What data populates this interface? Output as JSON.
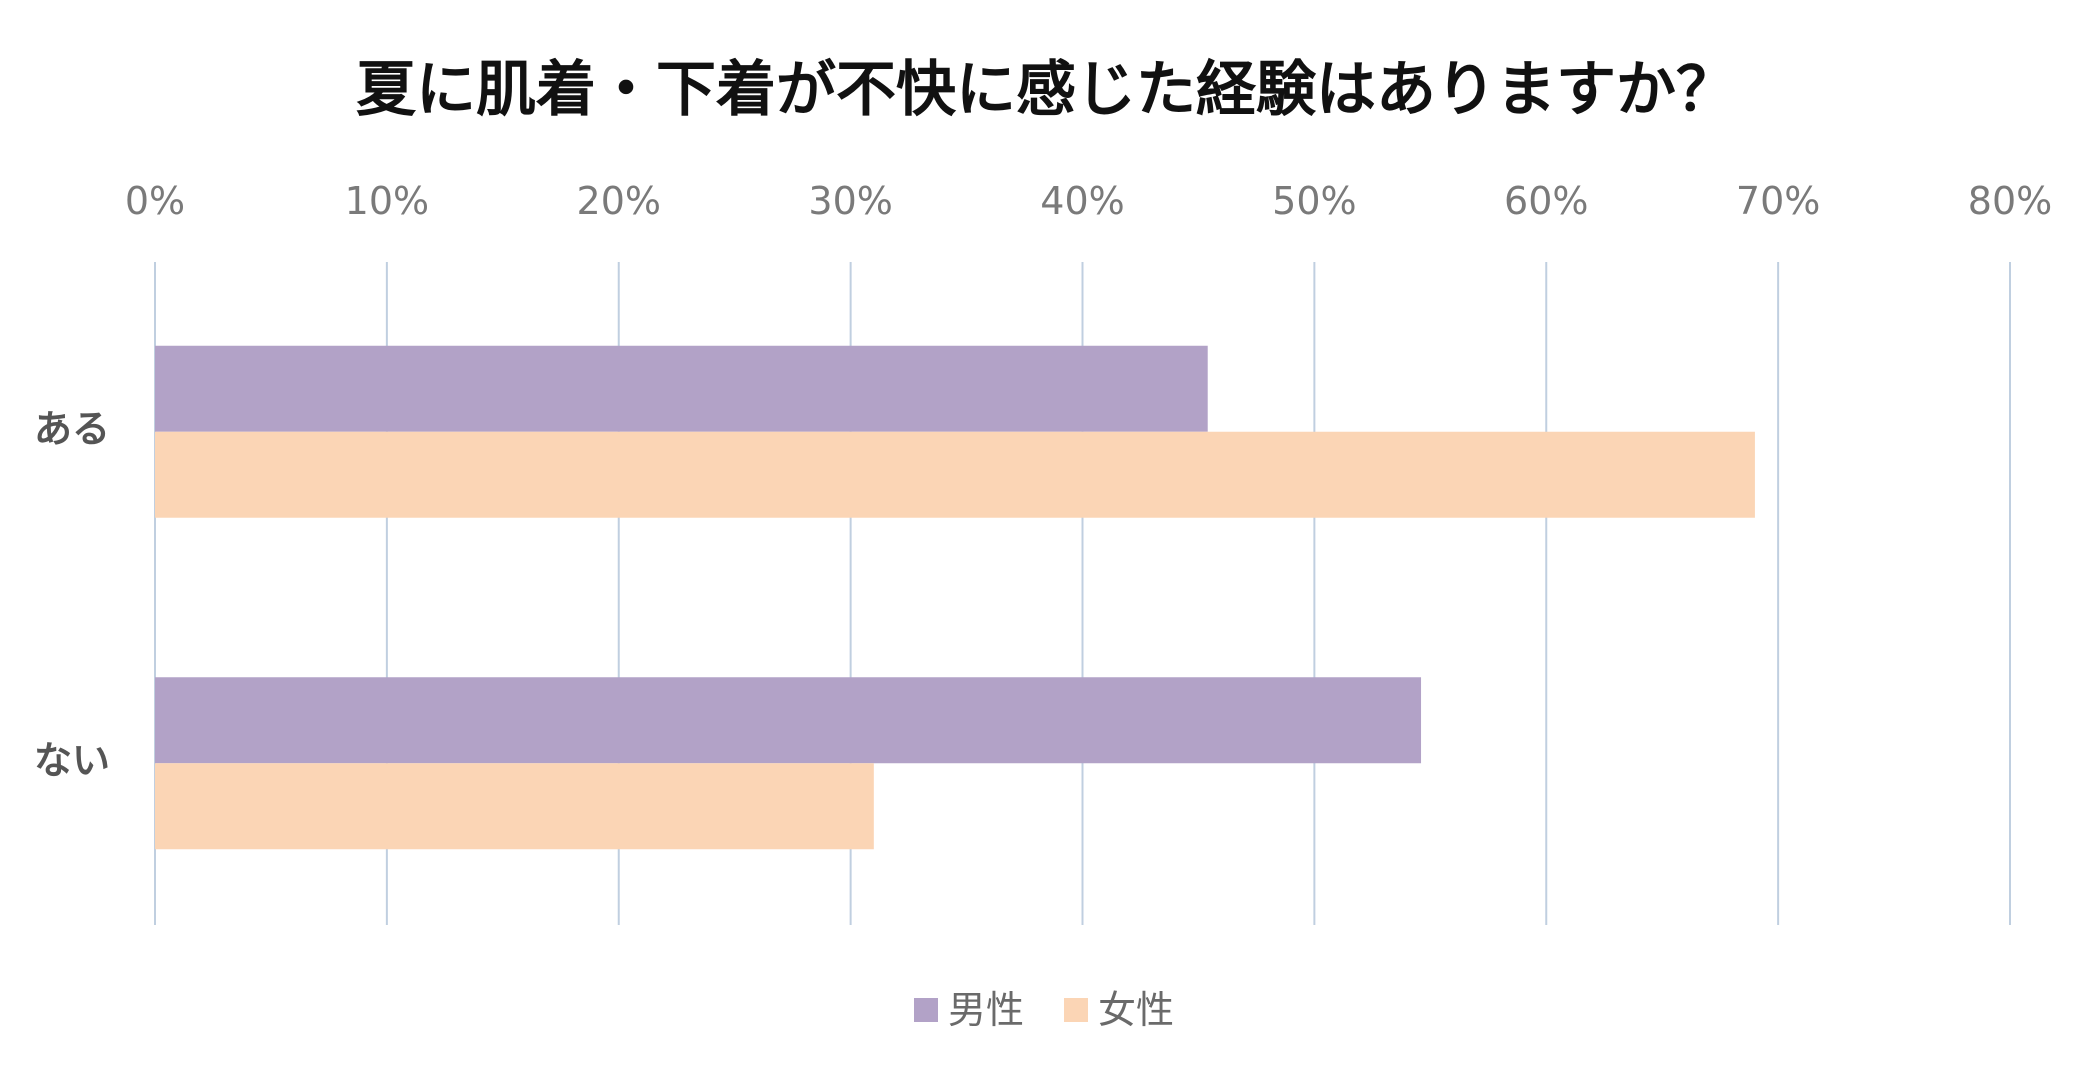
{
  "chart_data": {
    "type": "bar",
    "orientation": "horizontal",
    "title": "夏に肌着・下着が不快に感じた経験はありますか？",
    "categories": [
      "ある",
      "ない"
    ],
    "series": [
      {
        "name": "男性",
        "values": [
          45.4,
          54.6
        ],
        "color": "#b2a2c7"
      },
      {
        "name": "女性",
        "values": [
          69.0,
          31.0
        ],
        "color": "#fbd5b5"
      }
    ],
    "x_ticks": [
      "0%",
      "10%",
      "20%",
      "30%",
      "40%",
      "50%",
      "60%",
      "70%",
      "80%"
    ],
    "xlim": [
      0,
      80
    ],
    "x_unit": "%",
    "tick_axis_position": "top",
    "grid": true,
    "grid_color": "#c0cfe0",
    "legend_position": "bottom"
  }
}
